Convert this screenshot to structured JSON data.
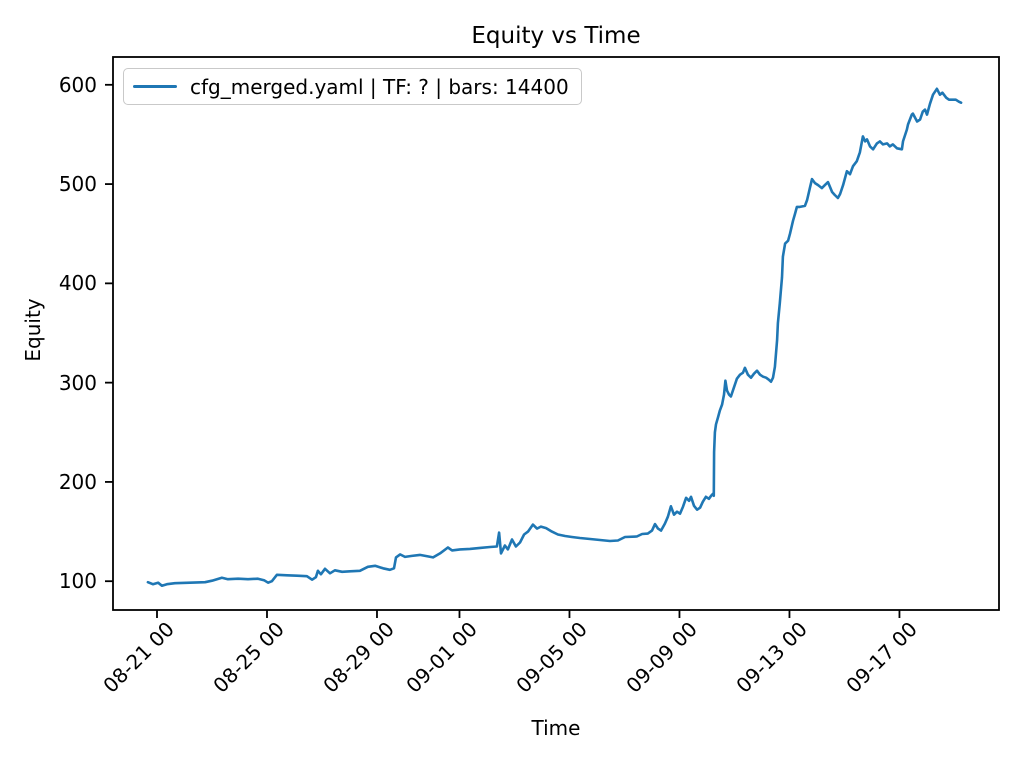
{
  "figure": {
    "title": "Equity vs Time",
    "xlabel": "Time",
    "ylabel": "Equity",
    "background_color": "#ffffff",
    "spine_color": "#000000"
  },
  "legend": {
    "label": "cfg_merged.yaml | TF: ? | bars: 14400",
    "line_color": "#1f77b4",
    "position": "upper left"
  },
  "chart_data": {
    "type": "line",
    "title": "Equity vs Time",
    "xlabel": "Time",
    "ylabel": "Equity",
    "grid": false,
    "legend_position": "upper left",
    "x_unit": "days since first x tick (08-21 00)",
    "xlim": [
      -1.6,
      30.62
    ],
    "ylim": [
      71,
      628
    ],
    "yticks": [
      100,
      200,
      300,
      400,
      500,
      600
    ],
    "xticks": [
      {
        "d": 0,
        "label": "08-21 00"
      },
      {
        "d": 4,
        "label": "08-25 00"
      },
      {
        "d": 8,
        "label": "08-29 00"
      },
      {
        "d": 11,
        "label": "09-01 00"
      },
      {
        "d": 15,
        "label": "09-05 00"
      },
      {
        "d": 19,
        "label": "09-09 00"
      },
      {
        "d": 23,
        "label": "09-13 00"
      },
      {
        "d": 27,
        "label": "09-17 00"
      }
    ],
    "series": [
      {
        "name": "cfg_merged.yaml | TF: ? | bars: 14400",
        "color": "#1f77b4",
        "line_width": 2.6,
        "points": [
          [
            -0.33,
            99
          ],
          [
            -0.15,
            97
          ],
          [
            0.04,
            98.5
          ],
          [
            0.18,
            95.5
          ],
          [
            0.36,
            97
          ],
          [
            0.65,
            98
          ],
          [
            1.2,
            98.5
          ],
          [
            1.75,
            99
          ],
          [
            2.0,
            100.5
          ],
          [
            2.36,
            103.5
          ],
          [
            2.58,
            102
          ],
          [
            2.95,
            102.5
          ],
          [
            3.31,
            102
          ],
          [
            3.67,
            102.5
          ],
          [
            3.89,
            101
          ],
          [
            4.04,
            98.5
          ],
          [
            4.18,
            100
          ],
          [
            4.36,
            106.5
          ],
          [
            4.73,
            106
          ],
          [
            5.09,
            105.5
          ],
          [
            5.45,
            105
          ],
          [
            5.64,
            101.5
          ],
          [
            5.78,
            104
          ],
          [
            5.85,
            110.5
          ],
          [
            5.96,
            107
          ],
          [
            6.11,
            112.5
          ],
          [
            6.29,
            108
          ],
          [
            6.47,
            111
          ],
          [
            6.73,
            109.5
          ],
          [
            7.02,
            110
          ],
          [
            7.38,
            110.5
          ],
          [
            7.67,
            114.5
          ],
          [
            7.93,
            115.5
          ],
          [
            8.22,
            113
          ],
          [
            8.47,
            111.5
          ],
          [
            8.62,
            113
          ],
          [
            8.69,
            124
          ],
          [
            8.84,
            127
          ],
          [
            9.02,
            124.5
          ],
          [
            9.27,
            125.5
          ],
          [
            9.56,
            126.5
          ],
          [
            9.85,
            125
          ],
          [
            10.04,
            124
          ],
          [
            10.29,
            128
          ],
          [
            10.58,
            134
          ],
          [
            10.73,
            131
          ],
          [
            11.02,
            132
          ],
          [
            11.38,
            132.5
          ],
          [
            11.75,
            133.5
          ],
          [
            12.11,
            134.5
          ],
          [
            12.36,
            135
          ],
          [
            12.44,
            149
          ],
          [
            12.51,
            128
          ],
          [
            12.65,
            136
          ],
          [
            12.76,
            132
          ],
          [
            12.91,
            142
          ],
          [
            13.05,
            135
          ],
          [
            13.2,
            139
          ],
          [
            13.35,
            147
          ],
          [
            13.49,
            150
          ],
          [
            13.67,
            157
          ],
          [
            13.82,
            153
          ],
          [
            13.96,
            155
          ],
          [
            14.15,
            153.5
          ],
          [
            14.36,
            150
          ],
          [
            14.58,
            147
          ],
          [
            14.84,
            145.5
          ],
          [
            15.09,
            144.5
          ],
          [
            15.38,
            143.5
          ],
          [
            15.75,
            142.5
          ],
          [
            16.11,
            141.5
          ],
          [
            16.47,
            140.5
          ],
          [
            16.76,
            141
          ],
          [
            17.02,
            144.5
          ],
          [
            17.45,
            145
          ],
          [
            17.64,
            147.5
          ],
          [
            17.85,
            148
          ],
          [
            18.0,
            151
          ],
          [
            18.11,
            157.5
          ],
          [
            18.22,
            153
          ],
          [
            18.33,
            151
          ],
          [
            18.47,
            158
          ],
          [
            18.58,
            165
          ],
          [
            18.69,
            175.5
          ],
          [
            18.8,
            167
          ],
          [
            18.91,
            170
          ],
          [
            19.02,
            168
          ],
          [
            19.13,
            175
          ],
          [
            19.24,
            184
          ],
          [
            19.35,
            181
          ],
          [
            19.42,
            185
          ],
          [
            19.53,
            176
          ],
          [
            19.64,
            172
          ],
          [
            19.75,
            174
          ],
          [
            19.85,
            180
          ],
          [
            19.96,
            185
          ],
          [
            20.07,
            183
          ],
          [
            20.15,
            186
          ],
          [
            20.22,
            188
          ],
          [
            20.25,
            186
          ],
          [
            20.26,
            230
          ],
          [
            20.29,
            250
          ],
          [
            20.33,
            258
          ],
          [
            20.4,
            265
          ],
          [
            20.47,
            272
          ],
          [
            20.55,
            278
          ],
          [
            20.62,
            288
          ],
          [
            20.67,
            302
          ],
          [
            20.73,
            292
          ],
          [
            20.8,
            288
          ],
          [
            20.87,
            286
          ],
          [
            20.98,
            295
          ],
          [
            21.09,
            304
          ],
          [
            21.2,
            308
          ],
          [
            21.31,
            310
          ],
          [
            21.38,
            315
          ],
          [
            21.49,
            308
          ],
          [
            21.6,
            305
          ],
          [
            21.71,
            309
          ],
          [
            21.82,
            312
          ],
          [
            21.93,
            308
          ],
          [
            22.04,
            306
          ],
          [
            22.15,
            305
          ],
          [
            22.25,
            303
          ],
          [
            22.33,
            301
          ],
          [
            22.4,
            305
          ],
          [
            22.47,
            316
          ],
          [
            22.55,
            343
          ],
          [
            22.58,
            360
          ],
          [
            22.65,
            380
          ],
          [
            22.73,
            406
          ],
          [
            22.76,
            427
          ],
          [
            22.84,
            440
          ],
          [
            22.95,
            443
          ],
          [
            23.02,
            450
          ],
          [
            23.13,
            463
          ],
          [
            23.2,
            470
          ],
          [
            23.27,
            477
          ],
          [
            23.38,
            477
          ],
          [
            23.56,
            478
          ],
          [
            23.64,
            484
          ],
          [
            23.75,
            497
          ],
          [
            23.82,
            505
          ],
          [
            23.93,
            501
          ],
          [
            24.04,
            499
          ],
          [
            24.18,
            496
          ],
          [
            24.29,
            499
          ],
          [
            24.4,
            502
          ],
          [
            24.55,
            492
          ],
          [
            24.65,
            489
          ],
          [
            24.76,
            486
          ],
          [
            24.84,
            490
          ],
          [
            24.95,
            499
          ],
          [
            25.09,
            513
          ],
          [
            25.2,
            510
          ],
          [
            25.31,
            518
          ],
          [
            25.45,
            523
          ],
          [
            25.56,
            532
          ],
          [
            25.67,
            548
          ],
          [
            25.75,
            543
          ],
          [
            25.82,
            545
          ],
          [
            25.93,
            538
          ],
          [
            26.04,
            535
          ],
          [
            26.18,
            541
          ],
          [
            26.29,
            543
          ],
          [
            26.4,
            540
          ],
          [
            26.55,
            541
          ],
          [
            26.65,
            538
          ],
          [
            26.76,
            540
          ],
          [
            26.91,
            536
          ],
          [
            27.09,
            535
          ],
          [
            27.13,
            543
          ],
          [
            27.27,
            555
          ],
          [
            27.31,
            560
          ],
          [
            27.45,
            570
          ],
          [
            27.49,
            571
          ],
          [
            27.64,
            563
          ],
          [
            27.75,
            565
          ],
          [
            27.85,
            573
          ],
          [
            27.93,
            575
          ],
          [
            28.0,
            570
          ],
          [
            28.11,
            581
          ],
          [
            28.22,
            590
          ],
          [
            28.36,
            596
          ],
          [
            28.47,
            590
          ],
          [
            28.56,
            592
          ],
          [
            28.7,
            587
          ],
          [
            28.8,
            585
          ],
          [
            28.91,
            585
          ],
          [
            29.05,
            585
          ],
          [
            29.16,
            583
          ],
          [
            29.24,
            582
          ]
        ]
      }
    ]
  }
}
